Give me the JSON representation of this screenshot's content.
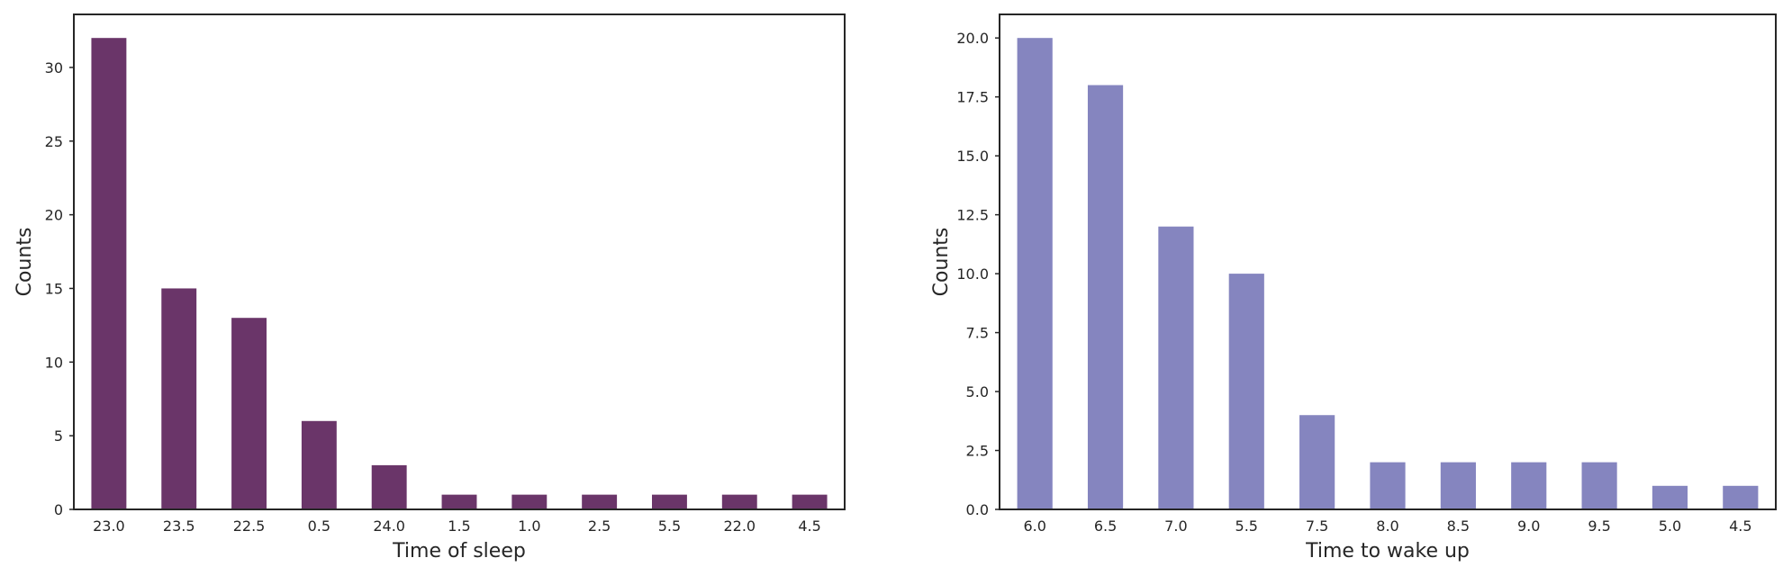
{
  "chart_data": [
    {
      "type": "bar",
      "xlabel": "Time of sleep",
      "ylabel": "Counts",
      "categories": [
        "23.0",
        "23.5",
        "22.5",
        "0.5",
        "24.0",
        "1.5",
        "1.0",
        "2.5",
        "5.5",
        "22.0",
        "4.5"
      ],
      "values": [
        32,
        15,
        13,
        6,
        3,
        1,
        1,
        1,
        1,
        1,
        1
      ],
      "ylim": [
        0,
        33.6
      ],
      "yticks": [
        "0",
        "5",
        "10",
        "15",
        "20",
        "25",
        "30"
      ],
      "color": "#6a3569",
      "grid": false
    },
    {
      "type": "bar",
      "xlabel": "Time to wake up",
      "ylabel": "Counts",
      "categories": [
        "6.0",
        "6.5",
        "7.0",
        "5.5",
        "7.5",
        "8.0",
        "8.5",
        "9.0",
        "9.5",
        "5.0",
        "4.5"
      ],
      "values": [
        20,
        18,
        12,
        10,
        4,
        2,
        2,
        2,
        2,
        1,
        1
      ],
      "ylim": [
        0,
        21
      ],
      "yticks": [
        "0.0",
        "2.5",
        "5.0",
        "7.5",
        "10.0",
        "12.5",
        "15.0",
        "17.5",
        "20.0"
      ],
      "color": "#8585bf",
      "grid": false
    }
  ]
}
